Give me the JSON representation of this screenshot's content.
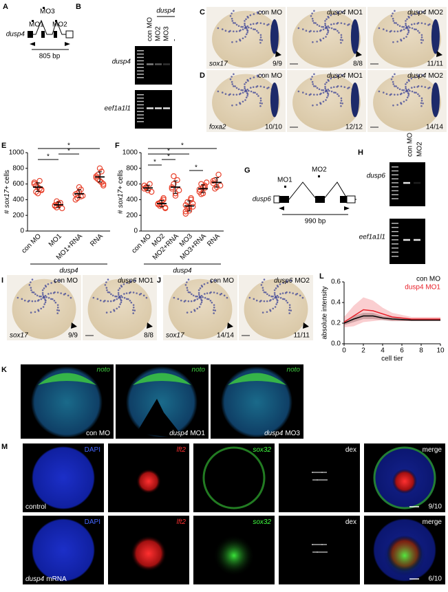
{
  "figure": {
    "A": {
      "label": "A",
      "gene": "dusp4",
      "mo": [
        "MO1",
        "MO3",
        "MO2"
      ],
      "size": "805 bp"
    },
    "B": {
      "label": "B",
      "lanes": [
        "con MO",
        "MO2",
        "MO3",
        "-"
      ],
      "lane_group": "dusp4",
      "rows": [
        "dusp4",
        "eef1a1l1"
      ]
    },
    "C": {
      "label": "C",
      "columns": [
        {
          "text": "con MO"
        },
        {
          "gene": "dusp4",
          "text": "MO1"
        },
        {
          "gene": "dusp4",
          "text": "MO2"
        }
      ],
      "marker": "sox17",
      "counts": [
        "9/9",
        "8/8",
        "11/11"
      ]
    },
    "D": {
      "label": "D",
      "columns": [
        {
          "text": "con MO"
        },
        {
          "gene": "dusp4",
          "text": "MO1"
        },
        {
          "gene": "dusp4",
          "text": "MO2"
        }
      ],
      "marker": "foxa2",
      "counts": [
        "10/10",
        "12/12",
        "14/14"
      ]
    },
    "G": {
      "label": "G",
      "gene": "dusp6",
      "mo": [
        "MO1",
        "MO2"
      ],
      "size": "990 bp"
    },
    "H": {
      "label": "H",
      "lanes": [
        "con MO",
        "MO2"
      ],
      "rows": [
        "dusp6",
        "eef1a1l1"
      ]
    },
    "I": {
      "label": "I",
      "columns": [
        {
          "text": "con MO"
        },
        {
          "gene": "dusp6",
          "text": "MO1"
        }
      ],
      "marker": "sox17",
      "counts": [
        "9/9",
        "8/8"
      ]
    },
    "J": {
      "label": "J",
      "columns": [
        {
          "text": "con MO"
        },
        {
          "gene": "dusp6",
          "text": "MO2"
        }
      ],
      "marker": "sox17",
      "counts": [
        "14/14",
        "11/11"
      ]
    },
    "K": {
      "label": "K",
      "channel": "noto",
      "columns": [
        {
          "text": "con MO"
        },
        {
          "gene": "dusp4",
          "text": "MO1"
        },
        {
          "gene": "dusp4",
          "text": "MO3"
        }
      ]
    },
    "M": {
      "label": "M",
      "channels": [
        {
          "text": "DAPI"
        },
        {
          "gene": "lft2"
        },
        {
          "gene": "sox32"
        },
        {
          "text": "dex"
        },
        {
          "text": "merge"
        }
      ],
      "rows": [
        {
          "condition": {
            "text": "control"
          },
          "count": "9/10"
        },
        {
          "condition": {
            "gene": "dusp4",
            "text": "mRNA"
          },
          "count": "6/10"
        }
      ]
    }
  },
  "chart_data": [
    {
      "type": "dotplot",
      "label": "E",
      "ylabel": [
        "#",
        "sox17",
        "+ cells"
      ],
      "group_label": "dusp4",
      "categories": [
        "con MO",
        "MO1",
        "MO1+RNA",
        "RNA"
      ],
      "values": [
        560,
        335,
        475,
        690
      ],
      "errors": [
        55,
        35,
        50,
        65
      ],
      "color": "#e8402a",
      "points": [
        [
          620,
          580,
          560,
          540,
          520,
          600,
          500,
          480,
          640,
          530
        ],
        [
          330,
          300,
          350,
          360,
          290,
          320,
          380,
          340
        ],
        [
          470,
          420,
          500,
          530,
          450,
          400,
          480,
          560,
          440
        ],
        [
          680,
          720,
          640,
          760,
          600,
          700,
          660,
          800,
          620,
          580
        ]
      ],
      "ylim": [
        0,
        1000
      ],
      "yticks": [
        0,
        200,
        400,
        600,
        800,
        1000
      ],
      "comparisons": [
        {
          "between": [
            "con MO",
            "RNA"
          ],
          "label": "*"
        },
        {
          "between": [
            "MO1",
            "MO1+RNA"
          ],
          "label": "*"
        },
        {
          "between": [
            "con MO",
            "MO1"
          ],
          "label": "*"
        }
      ]
    },
    {
      "type": "dotplot",
      "label": "F",
      "ylabel": [
        "#",
        "sox17",
        "+ cells"
      ],
      "group_label": "dusp4",
      "categories": [
        "con MO",
        "MO2",
        "MO2+RNA",
        "MO3",
        "MO3+RNA",
        "RNA"
      ],
      "values": [
        550,
        350,
        560,
        320,
        540,
        620
      ],
      "errors": [
        35,
        40,
        80,
        65,
        50,
        60
      ],
      "color": "#e8402a",
      "points": [
        [
          540,
          560,
          520,
          600,
          500,
          580,
          550
        ],
        [
          350,
          320,
          380,
          400,
          300,
          340,
          360,
          330,
          420,
          290
        ],
        [
          540,
          600,
          480,
          650,
          520,
          560,
          700,
          450
        ],
        [
          330,
          280,
          260,
          400,
          350,
          220,
          370,
          300,
          420,
          310,
          250
        ],
        [
          530,
          600,
          480,
          550,
          620,
          500,
          470,
          560,
          580
        ],
        [
          610,
          650,
          560,
          720,
          580,
          640,
          540
        ]
      ],
      "ylim": [
        0,
        1000
      ],
      "yticks": [
        0,
        200,
        400,
        600,
        800,
        1000
      ],
      "comparisons": [
        {
          "between": [
            "con MO",
            "RNA"
          ],
          "label": "*"
        },
        {
          "between": [
            "con MO",
            "MO3"
          ],
          "label": "*"
        },
        {
          "between": [
            "MO2",
            "MO2+RNA"
          ],
          "label": "*"
        },
        {
          "between": [
            "con MO",
            "MO2"
          ],
          "label": "*"
        },
        {
          "between": [
            "MO3",
            "MO3+RNA"
          ],
          "label": "*"
        }
      ]
    },
    {
      "type": "line",
      "label": "L",
      "xlabel": "cell tier",
      "ylabel": "absolute intensity",
      "x": [
        0,
        1,
        2,
        3,
        4,
        5,
        6,
        7,
        8,
        9,
        10
      ],
      "series": [
        {
          "name": "con MO",
          "color": "#000000",
          "values": [
            0.2,
            0.24,
            0.27,
            0.27,
            0.25,
            0.24,
            0.235,
            0.23,
            0.23,
            0.23,
            0.23
          ],
          "errors": [
            0.02,
            0.03,
            0.03,
            0.03,
            0.02,
            0.02,
            0.015,
            0.01,
            0.01,
            0.01,
            0.01
          ]
        },
        {
          "name": "dusp4 MO1",
          "color": "#e8202a",
          "values": [
            0.21,
            0.27,
            0.33,
            0.32,
            0.29,
            0.26,
            0.25,
            0.24,
            0.24,
            0.24,
            0.24
          ],
          "errors": [
            0.05,
            0.1,
            0.12,
            0.1,
            0.06,
            0.04,
            0.03,
            0.02,
            0.02,
            0.02,
            0.02
          ]
        }
      ],
      "xlim": [
        0,
        10
      ],
      "xticks": [
        0,
        2,
        4,
        6,
        8,
        10
      ],
      "ylim": [
        0,
        0.6
      ],
      "yticks": [
        {
          "value": 0,
          "label": "0.0"
        },
        0.2,
        0.4,
        0.6
      ]
    }
  ]
}
